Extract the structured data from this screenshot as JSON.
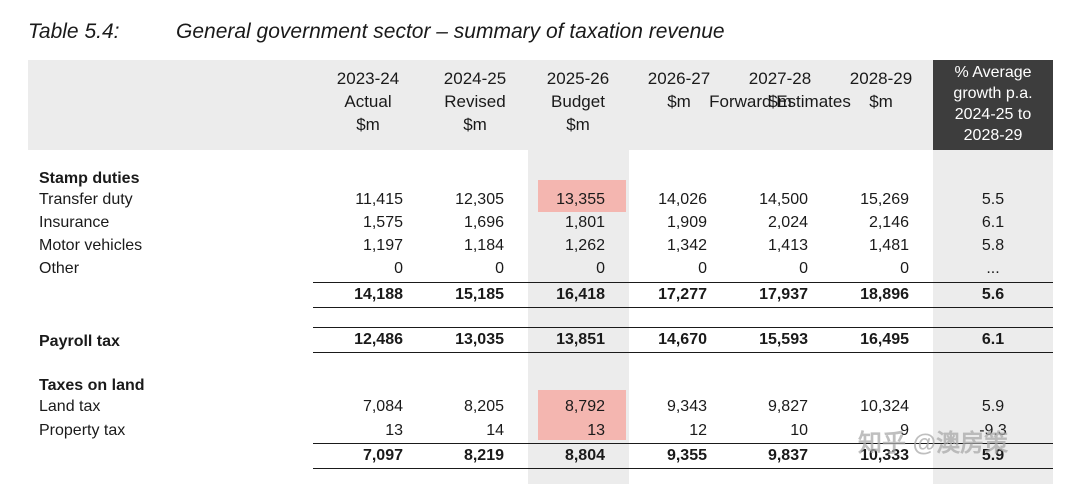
{
  "title": {
    "label": "Table 5.4:",
    "text": "General government sector – summary of taxation revenue"
  },
  "header": {
    "years": [
      {
        "year": "2023-24",
        "type": "Actual",
        "unit": "$m"
      },
      {
        "year": "2024-25",
        "type": "Revised",
        "unit": "$m"
      },
      {
        "year": "2025-26",
        "type": "Budget",
        "unit": "$m"
      },
      {
        "year": "2026-27",
        "type": "",
        "unit": "$m"
      },
      {
        "year": "2027-28",
        "type": "",
        "unit": "$m"
      },
      {
        "year": "2028-29",
        "type": "",
        "unit": "$m"
      }
    ],
    "forward_estimates": "Forward Estimates",
    "growth": {
      "l1": "% Average",
      "l2": "growth p.a.",
      "l3": "2024-25 to",
      "l4": "2028-29"
    }
  },
  "sections": {
    "stamp": {
      "heading": "Stamp duties",
      "rows": [
        {
          "label": "Transfer duty",
          "values": [
            "11,415",
            "12,305",
            "13,355",
            "14,026",
            "14,500",
            "15,269"
          ],
          "growth": "5.5"
        },
        {
          "label": "Insurance",
          "values": [
            "1,575",
            "1,696",
            "1,801",
            "1,909",
            "2,024",
            "2,146"
          ],
          "growth": "6.1"
        },
        {
          "label": "Motor vehicles",
          "values": [
            "1,197",
            "1,184",
            "1,262",
            "1,342",
            "1,413",
            "1,481"
          ],
          "growth": "5.8"
        },
        {
          "label": "Other",
          "values": [
            "0",
            "0",
            "0",
            "0",
            "0",
            "0"
          ],
          "growth": "..."
        }
      ],
      "total": {
        "values": [
          "14,188",
          "15,185",
          "16,418",
          "17,277",
          "17,937",
          "18,896"
        ],
        "growth": "5.6"
      }
    },
    "payroll": {
      "label": "Payroll tax",
      "values": [
        "12,486",
        "13,035",
        "13,851",
        "14,670",
        "15,593",
        "16,495"
      ],
      "growth": "6.1"
    },
    "land": {
      "heading": "Taxes on land",
      "rows": [
        {
          "label": "Land tax",
          "values": [
            "7,084",
            "8,205",
            "8,792",
            "9,343",
            "9,827",
            "10,324"
          ],
          "growth": "5.9"
        },
        {
          "label": "Property tax",
          "values": [
            "13",
            "14",
            "13",
            "12",
            "10",
            "9"
          ],
          "growth": "-9.3"
        }
      ],
      "total": {
        "values": [
          "7,097",
          "8,219",
          "8,804",
          "9,355",
          "9,837",
          "10,333"
        ],
        "growth": "5.9"
      }
    }
  },
  "watermark": "知乎 @澳房策",
  "colors": {
    "highlight": "#f4b6b0",
    "band": "#ececec",
    "dark_header": "#3d3d3d"
  }
}
